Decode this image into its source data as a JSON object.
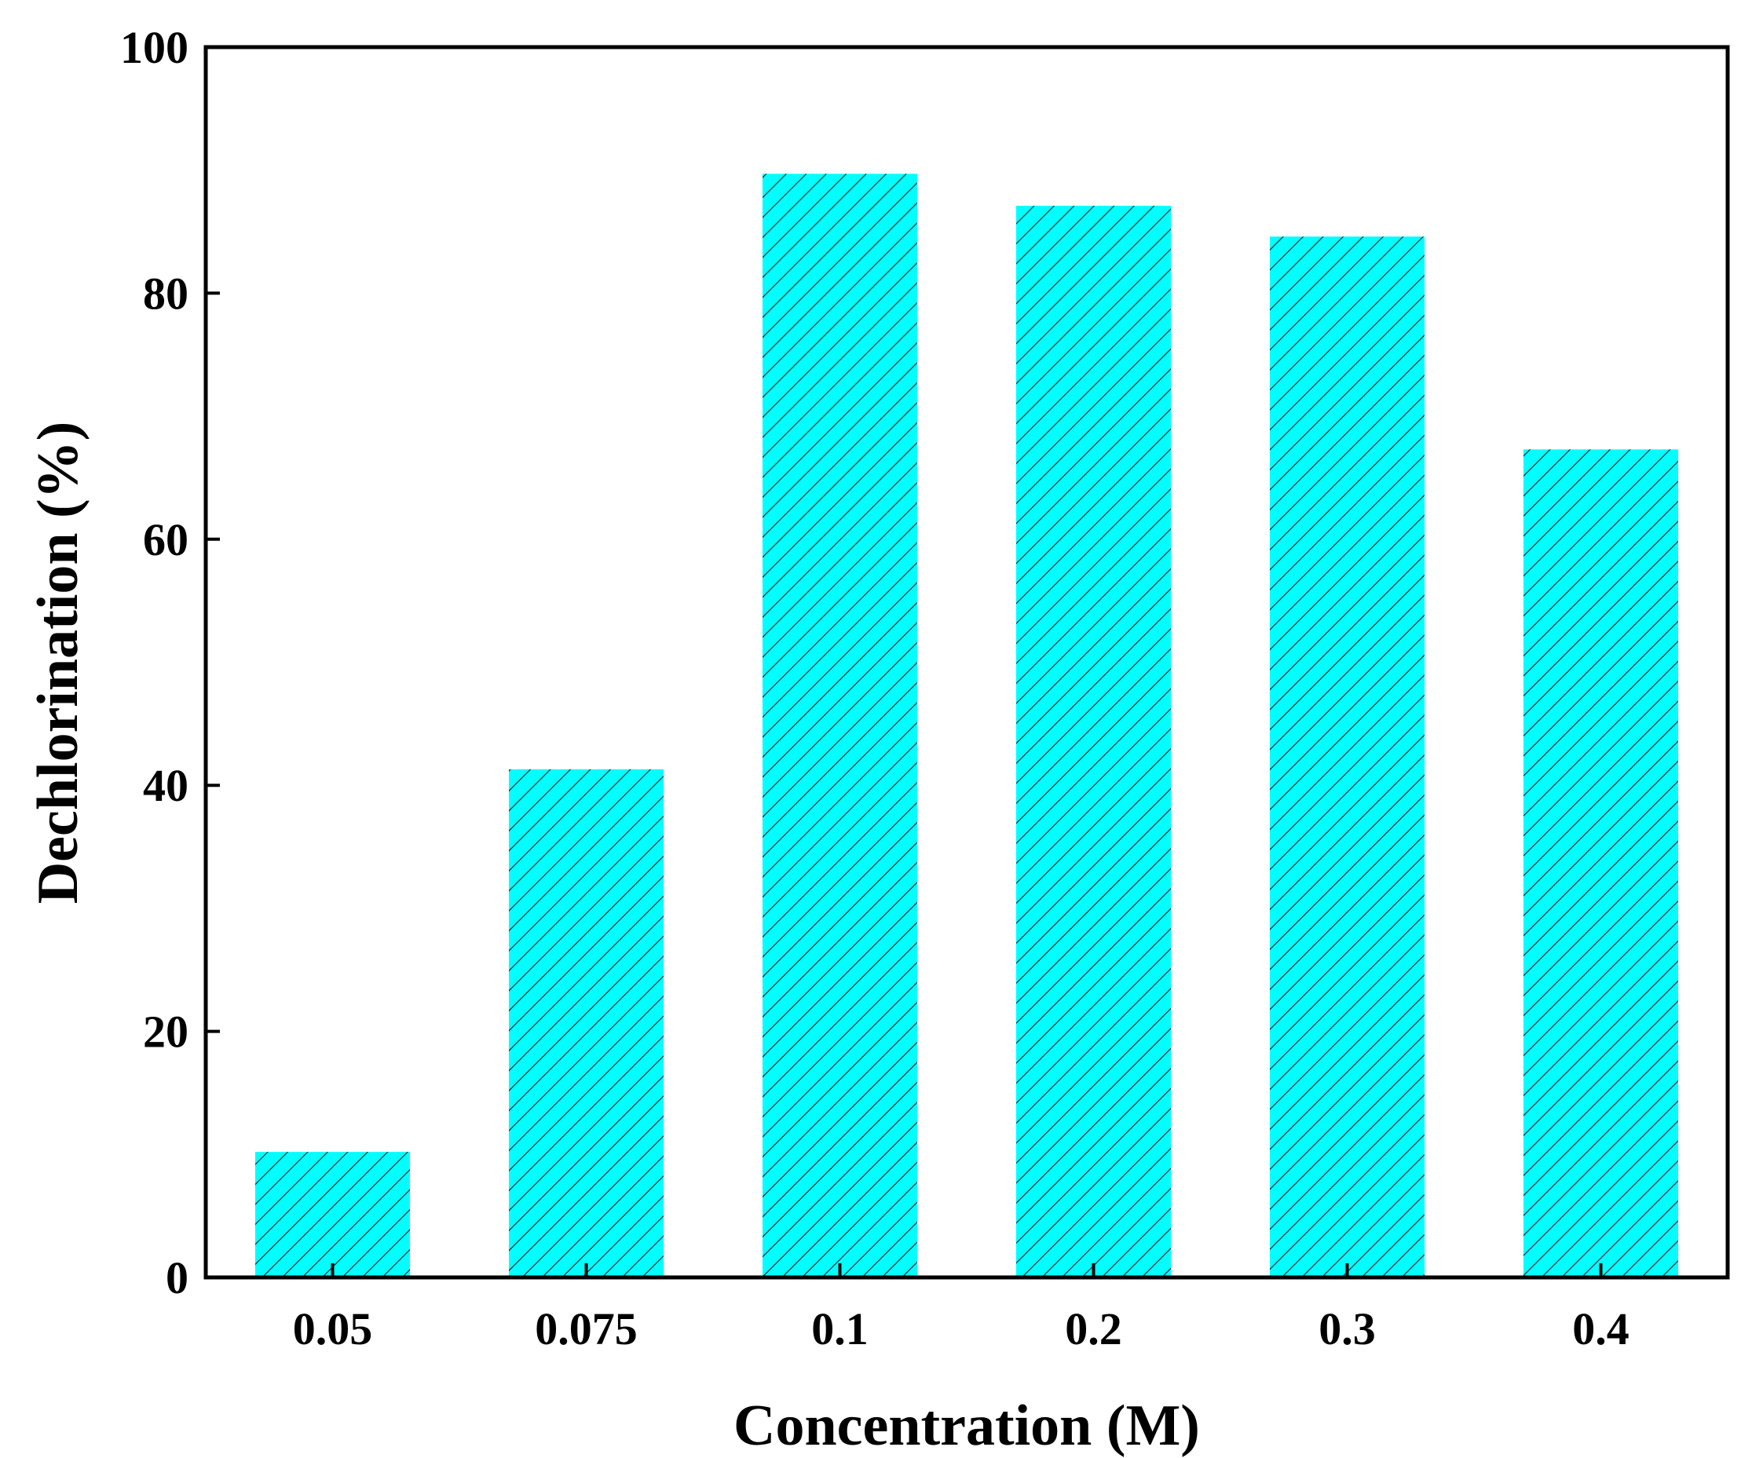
{
  "chart_data": {
    "type": "bar",
    "title": "",
    "xlabel": "Concentration (M)",
    "ylabel": "Dechlorination (%)",
    "categories": [
      "0.05",
      "0.075",
      "0.1",
      "0.2",
      "0.3",
      "0.4"
    ],
    "values": [
      10.2,
      41.3,
      89.7,
      87.1,
      84.6,
      67.3
    ],
    "ylim": [
      0,
      100
    ],
    "yticks": [
      0,
      20,
      40,
      60,
      80,
      100
    ],
    "grid": false,
    "legend": "none",
    "bar_color": "#00FFFF",
    "hatch": "diagonal"
  }
}
